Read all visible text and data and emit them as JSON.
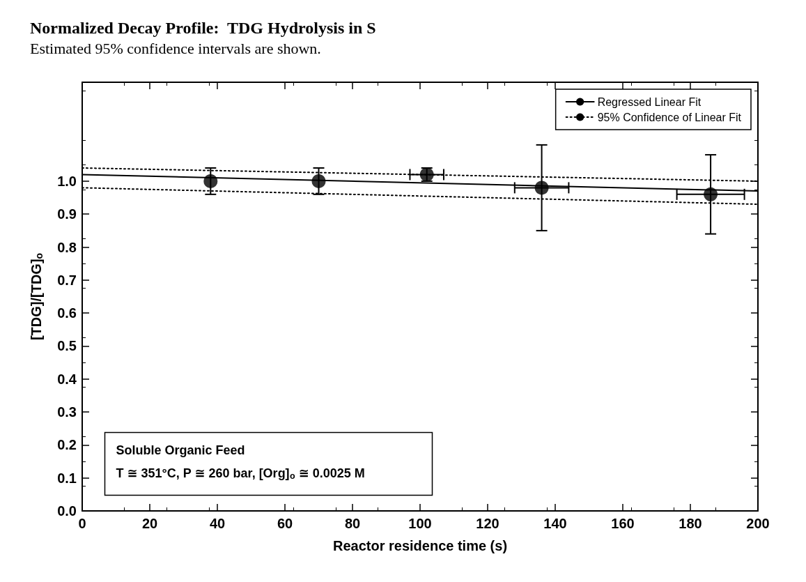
{
  "chart_data": {
    "type": "scatter",
    "title": "Normalized Decay Profile:  TDG Hydrolysis in S",
    "subtitle": "Estimated 95% confidence intervals are shown.",
    "xlabel": "Reactor residence time (s)",
    "ylabel": "[TDG]/[TDG]$_{o}$",
    "annotations": [
      "Soluble Organic Feed",
      "T ≅ 351°C, P ≅ 260 bar, [Org]$_{o}$ ≅ 0.0025 M"
    ],
    "xlim": [
      0,
      200
    ],
    "xticks": [
      0,
      20,
      40,
      60,
      80,
      100,
      120,
      140,
      160,
      180,
      200
    ],
    "ylim": [
      0,
      1.3
    ],
    "yticks": [
      {
        "value": 0,
        "label": "0.0"
      },
      {
        "value": 0.1,
        "label": "0.1"
      },
      {
        "value": 0.2,
        "label": "0.2"
      },
      {
        "value": 0.3,
        "label": "0.3"
      },
      {
        "value": 0.4,
        "label": "0.4"
      },
      {
        "value": 0.5,
        "label": "0.5"
      },
      {
        "value": 0.6,
        "label": "0.6"
      },
      {
        "value": 0.7,
        "label": "0.7"
      },
      {
        "value": 0.8,
        "label": "0.8"
      },
      {
        "value": 0.9,
        "label": "0.9"
      },
      {
        "value": 1,
        "label": "1.0"
      }
    ],
    "grid": false,
    "legend": "top right",
    "series": [
      {
        "marker": "circle",
        "color": "#000000",
        "x": [
          38,
          70,
          102,
          136,
          186
        ],
        "values": [
          1.0,
          1.0,
          1.02,
          0.98,
          0.96
        ],
        "errors": [
          0.04,
          0.04,
          0.02,
          0.13,
          0.12
        ],
        "xerrors": [
          null,
          null,
          5,
          8,
          10
        ]
      },
      {
        "type": "line",
        "name": "Regressed Linear Fit",
        "color": "#000000",
        "line_style": "solid",
        "x": [
          0,
          200
        ],
        "values": [
          1.02,
          0.97
        ]
      },
      {
        "type": "line",
        "name": "95% Confidence of Linear Fit",
        "color": "#000000",
        "line_style": "dotted",
        "x": [
          0,
          200
        ],
        "values": [
          1.04,
          1.0
        ]
      },
      {
        "type": "line",
        "color": "#000000",
        "line_style": "dotted",
        "x": [
          0,
          200
        ],
        "values": [
          0.98,
          0.93
        ]
      }
    ]
  }
}
